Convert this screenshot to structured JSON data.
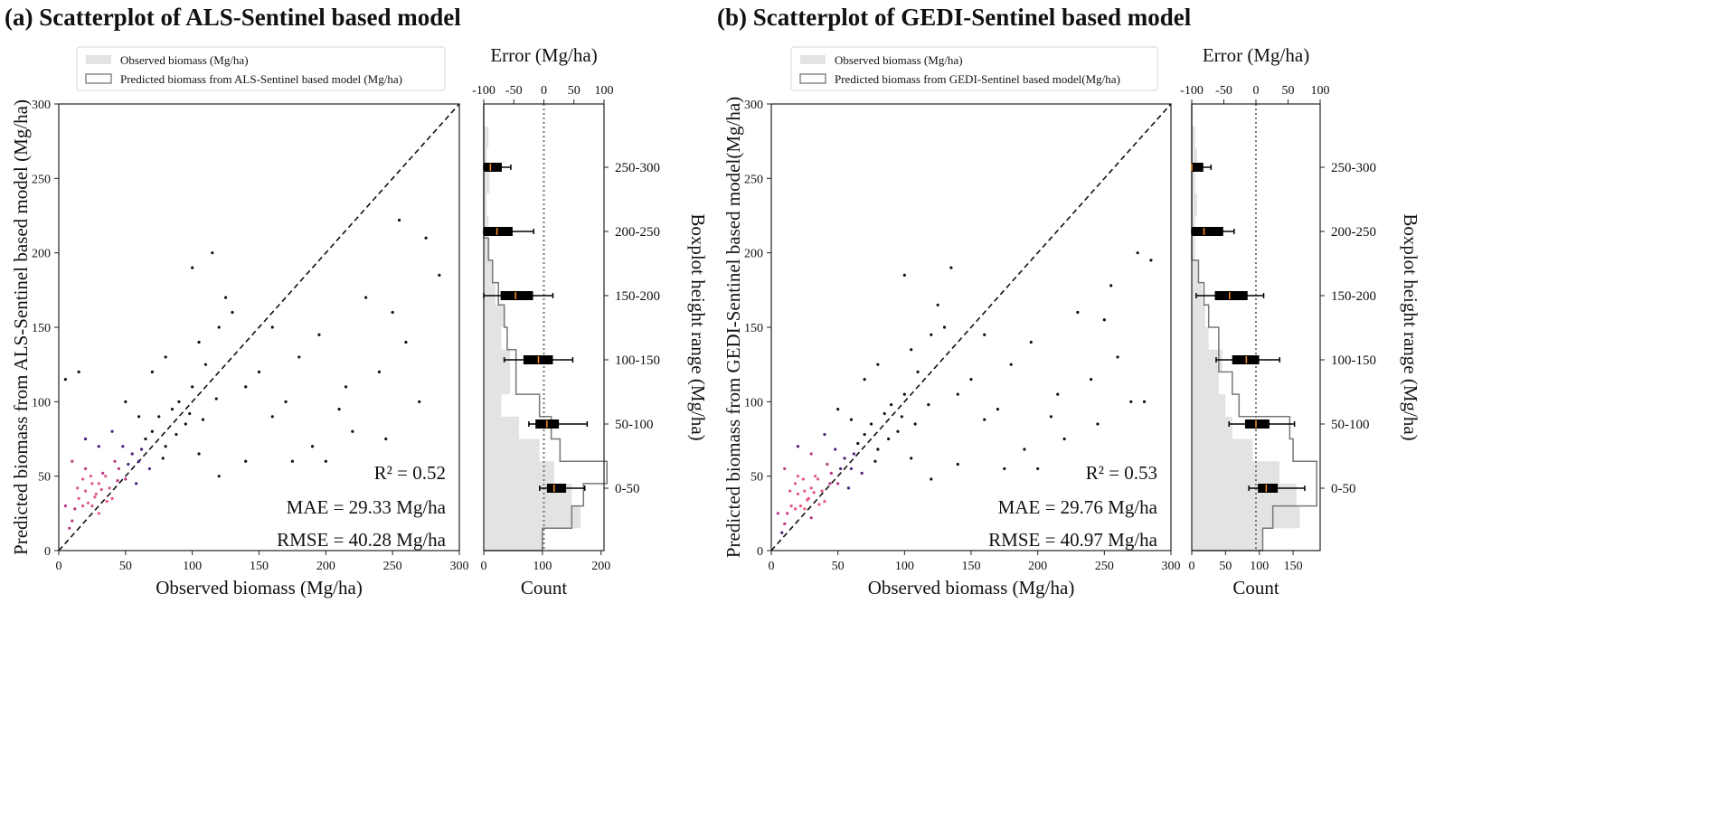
{
  "chart_data": [
    {
      "type": "scatter",
      "title": "(a) Scatterplot of ALS-Sentinel based model",
      "xlabel": "Observed biomass (Mg/ha)",
      "ylabel": "Predicted biomass from ALS-Sentinel based model (Mg/ha)",
      "xlim": [
        0,
        300
      ],
      "ylim": [
        0,
        300
      ],
      "xticks": [
        0,
        50,
        100,
        150,
        200,
        250,
        300
      ],
      "yticks": [
        0,
        50,
        100,
        150,
        200,
        250,
        300
      ],
      "legend": [
        "Observed biomass (Mg/ha)",
        "Predicted biomass from ALS-Sentinel based model (Mg/ha)"
      ],
      "stats": {
        "r2": "R² = 0.52",
        "mae": "MAE = 29.33 Mg/ha",
        "rmse": "RMSE = 40.28 Mg/ha"
      },
      "points": [
        [
          10,
          20
        ],
        [
          15,
          35
        ],
        [
          20,
          40
        ],
        [
          25,
          30
        ],
        [
          30,
          45
        ],
        [
          35,
          50
        ],
        [
          20,
          55
        ],
        [
          40,
          35
        ],
        [
          45,
          55
        ],
        [
          25,
          45
        ],
        [
          30,
          25
        ],
        [
          12,
          28
        ],
        [
          18,
          48
        ],
        [
          38,
          42
        ],
        [
          42,
          60
        ],
        [
          28,
          38
        ],
        [
          22,
          32
        ],
        [
          33,
          52
        ],
        [
          8,
          15
        ],
        [
          5,
          30
        ],
        [
          50,
          48
        ],
        [
          55,
          65
        ],
        [
          48,
          70
        ],
        [
          60,
          60
        ],
        [
          65,
          75
        ],
        [
          70,
          80
        ],
        [
          58,
          45
        ],
        [
          75,
          90
        ],
        [
          80,
          70
        ],
        [
          85,
          95
        ],
        [
          90,
          100
        ],
        [
          95,
          85
        ],
        [
          100,
          110
        ],
        [
          60,
          90
        ],
        [
          50,
          100
        ],
        [
          40,
          80
        ],
        [
          30,
          70
        ],
        [
          20,
          75
        ],
        [
          10,
          60
        ],
        [
          5,
          115
        ],
        [
          15,
          120
        ],
        [
          70,
          120
        ],
        [
          80,
          130
        ],
        [
          105,
          140
        ],
        [
          110,
          125
        ],
        [
          120,
          150
        ],
        [
          125,
          170
        ],
        [
          130,
          160
        ],
        [
          115,
          200
        ],
        [
          100,
          190
        ],
        [
          140,
          110
        ],
        [
          150,
          120
        ],
        [
          160,
          90
        ],
        [
          170,
          100
        ],
        [
          180,
          130
        ],
        [
          200,
          60
        ],
        [
          190,
          70
        ],
        [
          210,
          95
        ],
        [
          220,
          80
        ],
        [
          240,
          120
        ],
        [
          250,
          160
        ],
        [
          260,
          140
        ],
        [
          270,
          100
        ],
        [
          275,
          210
        ],
        [
          285,
          185
        ],
        [
          255,
          222
        ],
        [
          230,
          170
        ],
        [
          160,
          150
        ],
        [
          140,
          60
        ],
        [
          120,
          50
        ],
        [
          105,
          65
        ],
        [
          175,
          60
        ],
        [
          195,
          145
        ],
        [
          215,
          110
        ],
        [
          245,
          75
        ],
        [
          27,
          36
        ],
        [
          32,
          41
        ],
        [
          18,
          30
        ],
        [
          36,
          33
        ],
        [
          24,
          50
        ],
        [
          14,
          42
        ],
        [
          44,
          47
        ],
        [
          52,
          58
        ],
        [
          62,
          68
        ],
        [
          68,
          55
        ],
        [
          78,
          62
        ],
        [
          88,
          78
        ],
        [
          98,
          92
        ],
        [
          108,
          88
        ],
        [
          118,
          102
        ]
      ],
      "side": {
        "top_label": "Error (Mg/ha)",
        "bottom_label": "Count",
        "right_label": "Boxplot height range (Mg/ha)",
        "error_lim": [
          -100,
          100
        ],
        "error_ticks": [
          -100,
          -50,
          0,
          50,
          100
        ],
        "count_lim": [
          0,
          205
        ],
        "count_ticks": [
          0,
          100,
          200
        ],
        "hist_bin_width": 15,
        "observed_counts": [
          100,
          165,
          150,
          120,
          95,
          60,
          30,
          45,
          45,
          30,
          35,
          20,
          15,
          10,
          8,
          5,
          10,
          5,
          8,
          0
        ],
        "predicted_counts": [
          100,
          150,
          170,
          210,
          130,
          115,
          95,
          55,
          55,
          40,
          35,
          25,
          15,
          8,
          0,
          0,
          0,
          0,
          0,
          0
        ],
        "boxes": [
          {
            "label": "0-50",
            "wlo": -7,
            "q1": 5,
            "med": 17,
            "q3": 37,
            "whi": 68
          },
          {
            "label": "50-100",
            "wlo": -25,
            "q1": -14,
            "med": 5,
            "q3": 25,
            "whi": 72
          },
          {
            "label": "100-150",
            "wlo": -66,
            "q1": -34,
            "med": -9,
            "q3": 15,
            "whi": 48
          },
          {
            "label": "150-200",
            "wlo": -100,
            "q1": -72,
            "med": -47,
            "q3": -18,
            "whi": 15
          },
          {
            "label": "200-250",
            "wlo": -100,
            "q1": -100,
            "med": -78,
            "q3": -52,
            "whi": -17
          },
          {
            "label": "250-300",
            "wlo": -100,
            "q1": -100,
            "med": -89,
            "q3": -70,
            "whi": -55
          }
        ]
      }
    },
    {
      "type": "scatter",
      "title": "(b) Scatterplot of GEDI-Sentinel based model",
      "xlabel": "Observed biomass (Mg/ha)",
      "ylabel": "Predicted biomass from GEDI-Sentinel based model(Mg/ha)",
      "xlim": [
        0,
        300
      ],
      "ylim": [
        0,
        300
      ],
      "xticks": [
        0,
        50,
        100,
        150,
        200,
        250,
        300
      ],
      "yticks": [
        0,
        50,
        100,
        150,
        200,
        250,
        300
      ],
      "legend": [
        "Observed biomass (Mg/ha)",
        "Predicted biomass from GEDI-Sentinel based model(Mg/ha)"
      ],
      "stats": {
        "r2": "R² = 0.53",
        "mae": "MAE = 29.76 Mg/ha",
        "rmse": "RMSE = 40.97 Mg/ha"
      },
      "points": [
        [
          10,
          18
        ],
        [
          15,
          30
        ],
        [
          20,
          38
        ],
        [
          25,
          28
        ],
        [
          30,
          42
        ],
        [
          35,
          48
        ],
        [
          20,
          50
        ],
        [
          40,
          33
        ],
        [
          45,
          52
        ],
        [
          25,
          40
        ],
        [
          30,
          22
        ],
        [
          12,
          25
        ],
        [
          18,
          45
        ],
        [
          38,
          40
        ],
        [
          42,
          58
        ],
        [
          28,
          35
        ],
        [
          22,
          30
        ],
        [
          33,
          50
        ],
        [
          8,
          12
        ],
        [
          5,
          25
        ],
        [
          50,
          45
        ],
        [
          55,
          62
        ],
        [
          48,
          68
        ],
        [
          60,
          55
        ],
        [
          65,
          72
        ],
        [
          70,
          78
        ],
        [
          58,
          42
        ],
        [
          75,
          85
        ],
        [
          80,
          68
        ],
        [
          85,
          92
        ],
        [
          90,
          98
        ],
        [
          95,
          80
        ],
        [
          100,
          105
        ],
        [
          60,
          88
        ],
        [
          50,
          95
        ],
        [
          40,
          78
        ],
        [
          30,
          65
        ],
        [
          20,
          70
        ],
        [
          10,
          55
        ],
        [
          70,
          115
        ],
        [
          80,
          125
        ],
        [
          105,
          135
        ],
        [
          110,
          120
        ],
        [
          120,
          145
        ],
        [
          125,
          165
        ],
        [
          130,
          150
        ],
        [
          135,
          190
        ],
        [
          100,
          185
        ],
        [
          140,
          105
        ],
        [
          150,
          115
        ],
        [
          160,
          88
        ],
        [
          170,
          95
        ],
        [
          180,
          125
        ],
        [
          200,
          55
        ],
        [
          190,
          68
        ],
        [
          210,
          90
        ],
        [
          220,
          75
        ],
        [
          240,
          115
        ],
        [
          250,
          155
        ],
        [
          260,
          130
        ],
        [
          270,
          100
        ],
        [
          275,
          200
        ],
        [
          285,
          195
        ],
        [
          255,
          178
        ],
        [
          230,
          160
        ],
        [
          160,
          145
        ],
        [
          140,
          58
        ],
        [
          120,
          48
        ],
        [
          105,
          62
        ],
        [
          175,
          55
        ],
        [
          195,
          140
        ],
        [
          215,
          105
        ],
        [
          245,
          85
        ],
        [
          280,
          100
        ],
        [
          27,
          34
        ],
        [
          32,
          39
        ],
        [
          18,
          28
        ],
        [
          36,
          31
        ],
        [
          24,
          48
        ],
        [
          14,
          40
        ],
        [
          44,
          45
        ],
        [
          52,
          55
        ],
        [
          62,
          65
        ],
        [
          68,
          52
        ],
        [
          78,
          60
        ],
        [
          88,
          75
        ],
        [
          98,
          90
        ],
        [
          108,
          85
        ],
        [
          118,
          98
        ]
      ],
      "side": {
        "top_label": "Error (Mg/ha)",
        "bottom_label": "Count",
        "right_label": "Boxplot height range (Mg/ha)",
        "error_lim": [
          -100,
          100
        ],
        "error_ticks": [
          -100,
          -50,
          0,
          50,
          100
        ],
        "count_lim": [
          0,
          190
        ],
        "count_ticks": [
          0,
          50,
          100,
          150
        ],
        "hist_bin_width": 15,
        "observed_counts": [
          105,
          160,
          155,
          130,
          90,
          60,
          50,
          40,
          45,
          25,
          20,
          15,
          10,
          5,
          5,
          8,
          5,
          8,
          5,
          0
        ],
        "predicted_counts": [
          105,
          120,
          185,
          185,
          150,
          145,
          70,
          60,
          40,
          40,
          25,
          18,
          10,
          0,
          0,
          0,
          0,
          0,
          0,
          0
        ],
        "boxes": [
          {
            "label": "0-50",
            "wlo": -11,
            "q1": 3,
            "med": 16,
            "q3": 34,
            "whi": 76
          },
          {
            "label": "50-100",
            "wlo": -42,
            "q1": -17,
            "med": 0,
            "q3": 21,
            "whi": 60
          },
          {
            "label": "100-150",
            "wlo": -62,
            "q1": -37,
            "med": -15,
            "q3": 5,
            "whi": 37
          },
          {
            "label": "150-200",
            "wlo": -93,
            "q1": -64,
            "med": -41,
            "q3": -13,
            "whi": 12
          },
          {
            "label": "200-250",
            "wlo": -100,
            "q1": -100,
            "med": -81,
            "q3": -51,
            "whi": -34
          },
          {
            "label": "250-300",
            "wlo": -100,
            "q1": -100,
            "med": -100,
            "q3": -82,
            "whi": -70
          }
        ]
      }
    }
  ]
}
